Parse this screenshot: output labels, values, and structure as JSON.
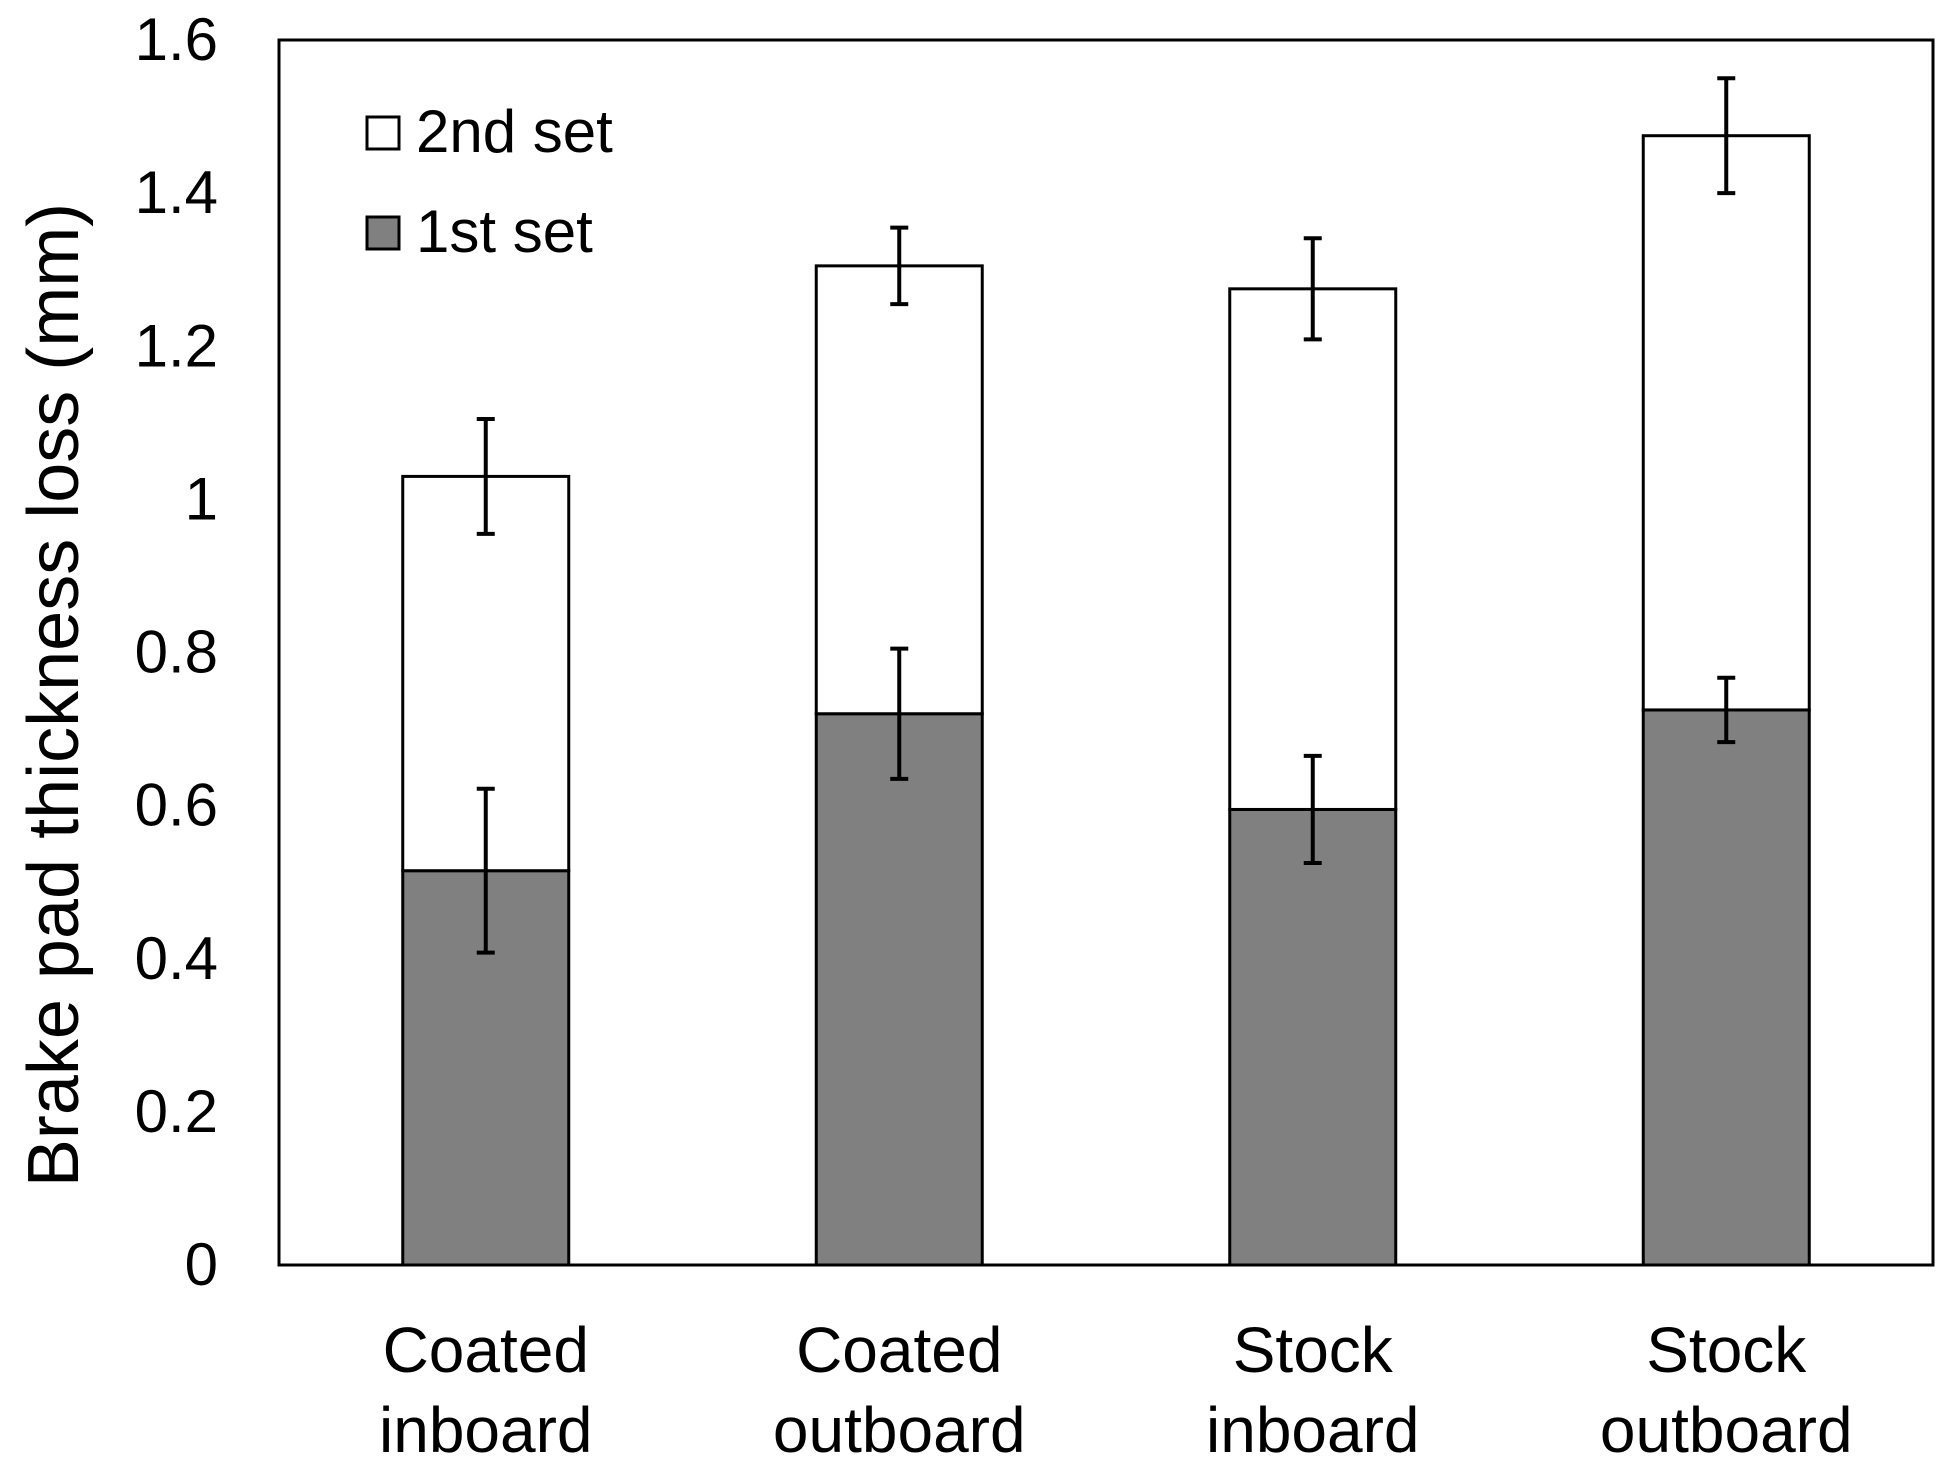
{
  "chart_data": {
    "type": "bar",
    "stacked": true,
    "title": "",
    "xlabel": "",
    "ylabel": "Brake pad thickness loss (mm)",
    "ylim": [
      0,
      1.6
    ],
    "yticks": [
      0,
      0.2,
      0.4,
      0.6,
      0.8,
      1,
      1.2,
      1.4,
      1.6
    ],
    "ytick_labels": [
      "0",
      "0.2",
      "0.4",
      "0.6",
      "0.8",
      "1",
      "1.2",
      "1.4",
      "1.6"
    ],
    "grid": false,
    "legend_position": "top-left",
    "categories": [
      [
        "Coated",
        "inboard"
      ],
      [
        "Coated",
        "outboard"
      ],
      [
        "Stock",
        "inboard"
      ],
      [
        "Stock",
        "outboard"
      ]
    ],
    "series": [
      {
        "name": "1st set",
        "color": "#808080",
        "values": [
          0.515,
          0.72,
          0.595,
          0.725
        ],
        "error": [
          0.107,
          0.085,
          0.07,
          0.042
        ]
      },
      {
        "name": "2nd set",
        "color": "#ffffff",
        "values": [
          0.515,
          0.585,
          0.68,
          0.75
        ],
        "error": [
          0.075,
          0.05,
          0.066,
          0.075
        ]
      }
    ]
  }
}
